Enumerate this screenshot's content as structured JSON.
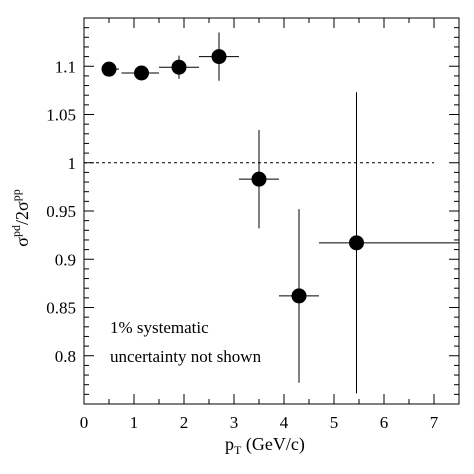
{
  "chart_data": {
    "type": "scatter",
    "xlabel_main": "p",
    "xlabel_sub": "T",
    "xlabel_rest": " (GeV/c)",
    "ylabel_sigma1": "σ",
    "ylabel_sup1": "pd",
    "ylabel_mid": "/2σ",
    "ylabel_sup2": "pp",
    "xlim": [
      0,
      7.5
    ],
    "ylim": [
      0.75,
      1.15
    ],
    "x_ticks": [
      0,
      1,
      2,
      3,
      4,
      5,
      6,
      7
    ],
    "x_tick_labels": [
      "0",
      "1",
      "2",
      "3",
      "4",
      "5",
      "6",
      "7"
    ],
    "y_ticks": [
      0.8,
      0.85,
      0.9,
      0.95,
      1,
      1.05,
      1.1
    ],
    "y_tick_labels": [
      "0.8",
      "0.85",
      "0.9",
      "0.95",
      "1",
      "1.05",
      "1.1"
    ],
    "reference_line": {
      "y": 1.0,
      "x_range": [
        0,
        7
      ],
      "style": "dashed"
    },
    "points": [
      {
        "x": 0.5,
        "y": 1.097,
        "x_low": 0.35,
        "x_high": 0.7,
        "y_err": 0.0
      },
      {
        "x": 1.15,
        "y": 1.093,
        "x_low": 0.75,
        "x_high": 1.5,
        "y_err": 0.0
      },
      {
        "x": 1.9,
        "y": 1.099,
        "x_low": 1.5,
        "x_high": 2.3,
        "y_err": 0.012
      },
      {
        "x": 2.7,
        "y": 1.11,
        "x_low": 2.3,
        "x_high": 3.1,
        "y_err": 0.025
      },
      {
        "x": 3.5,
        "y": 0.983,
        "x_low": 3.1,
        "x_high": 3.9,
        "y_err": 0.051
      },
      {
        "x": 4.3,
        "y": 0.862,
        "x_low": 3.9,
        "x_high": 4.7,
        "y_err": 0.09
      },
      {
        "x": 5.45,
        "y": 0.917,
        "x_low": 4.7,
        "x_high": 7.5,
        "y_err": 0.156
      }
    ],
    "annotation_line1": "1% systematic",
    "annotation_line2": "uncertainty not shown"
  }
}
